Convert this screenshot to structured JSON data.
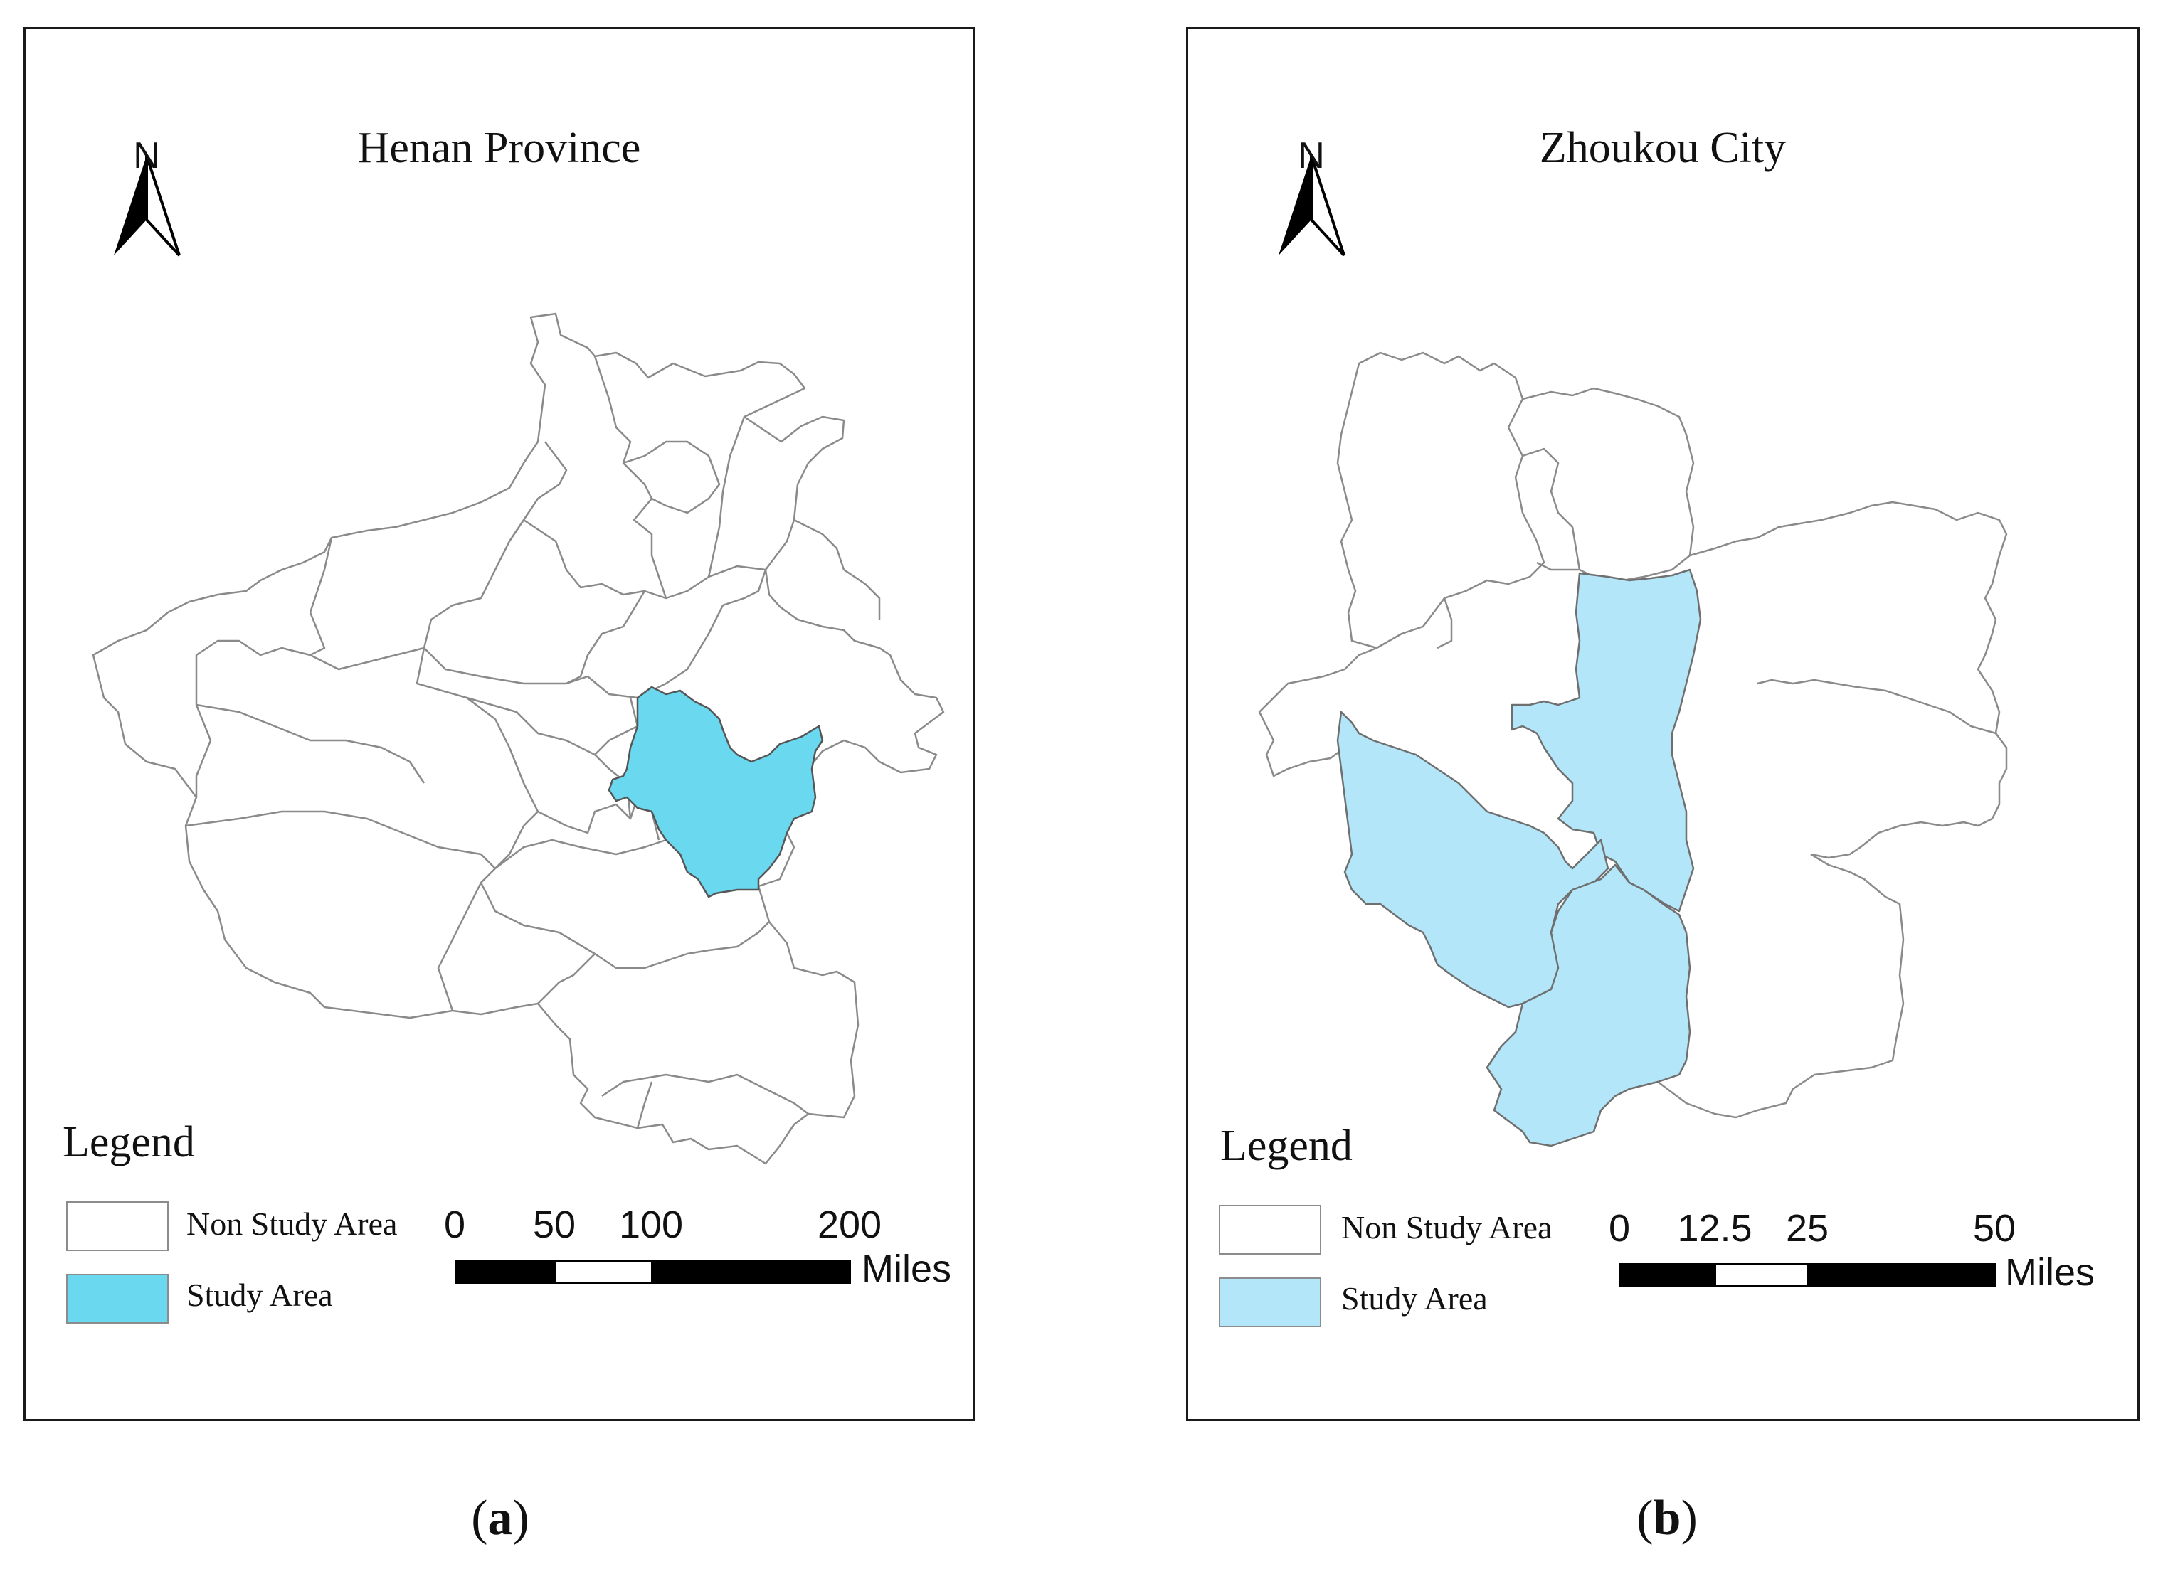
{
  "panels": [
    {
      "id": "a",
      "title": "Henan Province",
      "north_label": "N",
      "legend": {
        "title": "Legend",
        "items": [
          {
            "label": "Non Study Area",
            "color": "#ffffff"
          },
          {
            "label": "Study Area",
            "color": "#6ad8ee"
          }
        ]
      },
      "scale_bar": {
        "ticks": [
          "0",
          "50",
          "100",
          "200"
        ],
        "unit": "Miles"
      },
      "caption_letter": "a"
    },
    {
      "id": "b",
      "title": "Zhoukou City",
      "north_label": "N",
      "legend": {
        "title": "Legend",
        "items": [
          {
            "label": "Non Study Area",
            "color": "#ffffff"
          },
          {
            "label": "Study Area",
            "color": "#b3e6f9"
          }
        ]
      },
      "scale_bar": {
        "ticks": [
          "0",
          "12.5",
          "25",
          "50"
        ],
        "unit": "Miles"
      },
      "caption_letter": "b"
    }
  ],
  "colors": {
    "frame": "#1a1a1a",
    "boundary": "#8a8a8a",
    "study_a": "#6ad8ee",
    "study_b": "#b3e6f9"
  }
}
